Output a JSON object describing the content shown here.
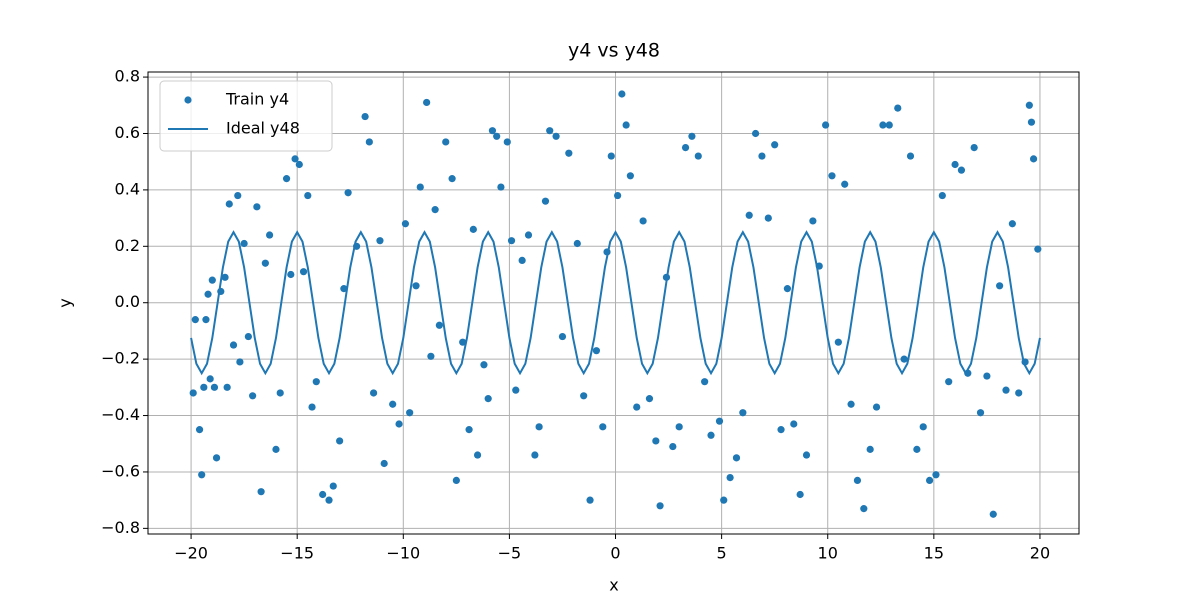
{
  "chart_data": {
    "type": "scatter",
    "title": "y4 vs y48",
    "x_label": "x",
    "y_label": "y",
    "xlim": [
      -22.03,
      21.84
    ],
    "ylim": [
      -0.82,
      0.818
    ],
    "xticks": [
      {
        "value": -20,
        "label": "−20"
      },
      {
        "value": -15,
        "label": "−15"
      },
      {
        "value": -10,
        "label": "−10"
      },
      {
        "value": -5,
        "label": "−5"
      },
      0,
      5,
      10,
      15,
      20
    ],
    "yticks": [
      {
        "value": -0.8,
        "label": "−0.8"
      },
      {
        "value": -0.6,
        "label": "−0.6"
      },
      {
        "value": -0.4,
        "label": "−0.4"
      },
      {
        "value": -0.2,
        "label": "−0.2"
      },
      {
        "value": 0,
        "label": "0.0"
      },
      0.2,
      0.4,
      0.6,
      0.8
    ],
    "grid": true,
    "legend": "upper left",
    "series": [
      {
        "name": "Train y4",
        "type": "scatter",
        "color": "#1f77b4",
        "x": [
          -19.9,
          -19.8,
          -19.6,
          -19.5,
          -19.4,
          -19.3,
          -19.2,
          -19.1,
          -19.0,
          -18.9,
          -18.8,
          -18.6,
          -18.4,
          -18.3,
          -18.2,
          -18.0,
          -17.8,
          -17.7,
          -17.5,
          -17.3,
          -17.1,
          -16.9,
          -16.7,
          -16.5,
          -16.3,
          -16.0,
          -15.8,
          -15.5,
          -15.3,
          -15.1,
          -14.9,
          -14.7,
          -14.5,
          -14.3,
          -14.1,
          -13.8,
          -13.5,
          -13.3,
          -13.0,
          -12.8,
          -12.6,
          -12.2,
          -11.8,
          -11.6,
          -11.4,
          -11.1,
          -10.9,
          -10.5,
          -10.2,
          -9.9,
          -9.7,
          -9.4,
          -9.2,
          -8.9,
          -8.7,
          -8.5,
          -8.3,
          -8.0,
          -7.7,
          -7.5,
          -7.2,
          -6.9,
          -6.7,
          -6.5,
          -6.2,
          -6.0,
          -5.8,
          -5.6,
          -5.4,
          -5.1,
          -4.9,
          -4.7,
          -4.4,
          -4.1,
          -3.8,
          -3.6,
          -3.3,
          -3.1,
          -2.8,
          -2.5,
          -2.2,
          -1.8,
          -1.5,
          -1.2,
          -0.9,
          -0.6,
          -0.4,
          -0.2,
          0.1,
          0.3,
          0.5,
          0.7,
          1.0,
          1.3,
          1.6,
          1.9,
          2.1,
          2.4,
          2.7,
          3.0,
          3.3,
          3.6,
          3.9,
          4.2,
          4.5,
          4.9,
          5.1,
          5.4,
          5.7,
          6.0,
          6.3,
          6.6,
          6.9,
          7.2,
          7.5,
          7.8,
          8.1,
          8.4,
          8.7,
          9.0,
          9.3,
          9.6,
          9.9,
          10.2,
          10.5,
          10.8,
          11.1,
          11.4,
          11.7,
          12.0,
          12.3,
          12.6,
          12.9,
          13.3,
          13.6,
          13.9,
          14.2,
          14.5,
          14.8,
          15.1,
          15.4,
          15.7,
          16.0,
          16.3,
          16.6,
          16.9,
          17.2,
          17.5,
          17.8,
          18.1,
          18.4,
          18.7,
          19.0,
          19.3,
          19.5,
          19.6,
          19.7,
          19.9
        ],
        "values": [
          -0.32,
          -0.06,
          -0.45,
          -0.61,
          -0.3,
          -0.06,
          0.03,
          -0.27,
          0.08,
          -0.3,
          -0.55,
          0.04,
          0.09,
          -0.3,
          0.35,
          -0.15,
          0.38,
          -0.21,
          0.21,
          -0.12,
          -0.33,
          0.34,
          -0.67,
          0.14,
          0.24,
          -0.52,
          -0.32,
          0.44,
          0.1,
          0.51,
          0.49,
          0.11,
          0.38,
          -0.37,
          -0.28,
          -0.68,
          -0.7,
          -0.65,
          -0.49,
          0.05,
          0.39,
          0.2,
          0.66,
          0.57,
          -0.32,
          0.22,
          -0.57,
          -0.36,
          -0.43,
          0.28,
          -0.39,
          0.06,
          0.41,
          0.71,
          -0.19,
          0.33,
          -0.08,
          0.57,
          0.44,
          -0.63,
          -0.14,
          -0.45,
          0.26,
          -0.54,
          -0.22,
          -0.34,
          0.61,
          0.59,
          0.41,
          0.57,
          0.22,
          -0.31,
          0.15,
          0.24,
          -0.54,
          -0.44,
          0.36,
          0.61,
          0.59,
          -0.12,
          0.53,
          0.21,
          -0.33,
          -0.7,
          -0.17,
          -0.44,
          0.18,
          0.52,
          0.38,
          0.74,
          0.63,
          0.45,
          -0.37,
          0.29,
          -0.34,
          -0.49,
          -0.72,
          0.09,
          -0.51,
          -0.44,
          0.55,
          0.59,
          0.52,
          -0.28,
          -0.47,
          -0.42,
          -0.7,
          -0.62,
          -0.55,
          -0.39,
          0.31,
          0.6,
          0.52,
          0.3,
          0.56,
          -0.45,
          0.05,
          -0.43,
          -0.68,
          -0.54,
          0.29,
          0.13,
          0.63,
          0.45,
          -0.14,
          0.42,
          -0.36,
          -0.63,
          -0.73,
          -0.52,
          -0.37,
          0.63,
          0.63,
          0.69,
          -0.2,
          0.52,
          -0.52,
          -0.44,
          -0.63,
          -0.61,
          0.38,
          -0.28,
          0.49,
          0.47,
          -0.25,
          0.55,
          -0.39,
          -0.26,
          -0.75,
          0.06,
          -0.31,
          0.28,
          -0.32,
          -0.21,
          0.7,
          0.64,
          0.51,
          0.19
        ]
      },
      {
        "name": "Ideal y48",
        "type": "line",
        "color": "#1f77b4",
        "x": [
          -20,
          -19.75,
          -19.5,
          -19.25,
          -19,
          -18.75,
          -18.5,
          -18.25,
          -18,
          -17.75,
          -17.5,
          -17.25,
          -17,
          -16.75,
          -16.5,
          -16.25,
          -16,
          -15.75,
          -15.5,
          -15.25,
          -15,
          -14.75,
          -14.5,
          -14.25,
          -14,
          -13.75,
          -13.5,
          -13.25,
          -13,
          -12.75,
          -12.5,
          -12.25,
          -12,
          -11.75,
          -11.5,
          -11.25,
          -11,
          -10.75,
          -10.5,
          -10.25,
          -10,
          -9.75,
          -9.5,
          -9.25,
          -9,
          -8.75,
          -8.5,
          -8.25,
          -8,
          -7.75,
          -7.5,
          -7.25,
          -7,
          -6.75,
          -6.5,
          -6.25,
          -6,
          -5.75,
          -5.5,
          -5.25,
          -5,
          -4.75,
          -4.5,
          -4.25,
          -4,
          -3.75,
          -3.5,
          -3.25,
          -3,
          -2.75,
          -2.5,
          -2.25,
          -2,
          -1.75,
          -1.5,
          -1.25,
          -1,
          -0.75,
          -0.5,
          -0.25,
          0,
          0.25,
          0.5,
          0.75,
          1,
          1.25,
          1.5,
          1.75,
          2,
          2.25,
          2.5,
          2.75,
          3,
          3.25,
          3.5,
          3.75,
          4,
          4.25,
          4.5,
          4.75,
          5,
          5.25,
          5.5,
          5.75,
          6,
          6.25,
          6.5,
          6.75,
          7,
          7.25,
          7.5,
          7.75,
          8,
          8.25,
          8.5,
          8.75,
          9,
          9.25,
          9.5,
          9.75,
          10,
          10.25,
          10.5,
          10.75,
          11,
          11.25,
          11.5,
          11.75,
          12,
          12.25,
          12.5,
          12.75,
          13,
          13.25,
          13.5,
          13.75,
          14,
          14.25,
          14.5,
          14.75,
          15,
          15.25,
          15.5,
          15.75,
          16,
          16.25,
          16.5,
          16.75,
          17,
          17.25,
          17.5,
          17.75,
          18,
          18.25,
          18.5,
          18.75,
          19,
          19.25,
          19.5,
          19.75,
          20
        ],
        "values": [
          -0.125,
          -0.2165,
          -0.25,
          -0.2165,
          -0.125,
          0,
          0.125,
          0.2165,
          0.25,
          0.2165,
          0.125,
          0,
          -0.125,
          -0.2165,
          -0.25,
          -0.2165,
          -0.125,
          0,
          0.125,
          0.2165,
          0.25,
          0.2165,
          0.125,
          0,
          -0.125,
          -0.2165,
          -0.25,
          -0.2165,
          -0.125,
          0,
          0.125,
          0.2165,
          0.25,
          0.2165,
          0.125,
          0,
          -0.125,
          -0.2165,
          -0.25,
          -0.2165,
          -0.125,
          0,
          0.125,
          0.2165,
          0.25,
          0.2165,
          0.125,
          0,
          -0.125,
          -0.2165,
          -0.25,
          -0.2165,
          -0.125,
          0,
          0.125,
          0.2165,
          0.25,
          0.2165,
          0.125,
          0,
          -0.125,
          -0.2165,
          -0.25,
          -0.2165,
          -0.125,
          0,
          0.125,
          0.2165,
          0.25,
          0.2165,
          0.125,
          0,
          -0.125,
          -0.2165,
          -0.25,
          -0.2165,
          -0.125,
          0,
          0.125,
          0.2165,
          0.25,
          0.2165,
          0.125,
          0,
          -0.125,
          -0.2165,
          -0.25,
          -0.2165,
          -0.125,
          0,
          0.125,
          0.2165,
          0.25,
          0.2165,
          0.125,
          0,
          -0.125,
          -0.2165,
          -0.25,
          -0.2165,
          -0.125,
          0,
          0.125,
          0.2165,
          0.25,
          0.2165,
          0.125,
          0,
          -0.125,
          -0.2165,
          -0.25,
          -0.2165,
          -0.125,
          0,
          0.125,
          0.2165,
          0.25,
          0.2165,
          0.125,
          0,
          -0.125,
          -0.2165,
          -0.25,
          -0.2165,
          -0.125,
          0,
          0.125,
          0.2165,
          0.25,
          0.2165,
          0.125,
          0,
          -0.125,
          -0.2165,
          -0.25,
          -0.2165,
          -0.125,
          0,
          0.125,
          0.2165,
          0.25,
          0.2165,
          0.125,
          0,
          -0.125,
          -0.2165,
          -0.25,
          -0.2165,
          -0.125,
          0,
          0.125,
          0.2165,
          0.25,
          0.2165,
          0.125,
          0,
          -0.125,
          -0.2165,
          -0.25,
          -0.2165,
          -0.125
        ]
      }
    ]
  }
}
